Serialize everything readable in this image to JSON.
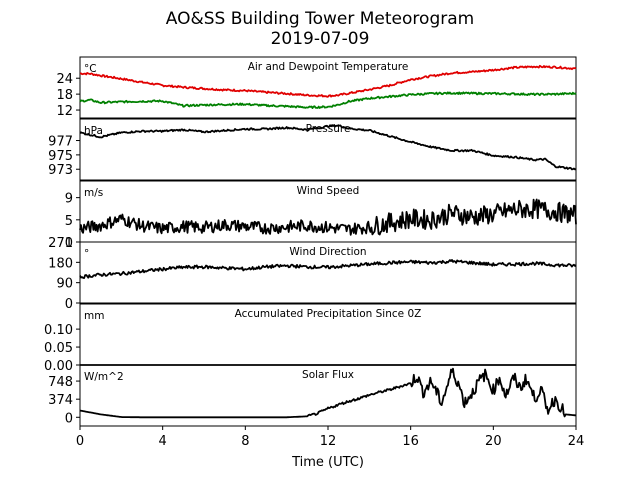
{
  "figure": {
    "title_line1": "AO&SS Building Tower Meteorogram",
    "title_line2": "2019-07-09",
    "xlabel": "Time (UTC)",
    "xticks": [
      0,
      4,
      8,
      12,
      16,
      20,
      24
    ],
    "xlim": [
      0,
      24
    ]
  },
  "chart_data": [
    {
      "type": "line",
      "title": "Air and Dewpoint Temperature",
      "unit": "°C",
      "ylim": [
        9,
        32
      ],
      "yticks": [
        12,
        18,
        24
      ],
      "x": [
        0,
        0.5,
        1,
        2,
        3,
        4,
        5,
        6,
        7,
        8,
        9,
        10,
        11,
        12,
        12.5,
        13,
        14,
        15,
        16,
        17,
        18,
        19,
        20,
        21,
        22,
        23,
        24
      ],
      "series": [
        {
          "color": "#e00000",
          "values": [
            25.8,
            25.7,
            25.0,
            23.8,
            22.5,
            21.3,
            20.6,
            20.1,
            19.6,
            19.3,
            18.7,
            18.2,
            17.6,
            17.3,
            17.6,
            18.3,
            19.7,
            21.3,
            23.5,
            24.8,
            26.0,
            26.4,
            27.1,
            28.0,
            28.4,
            28.2,
            27.6
          ]
        },
        {
          "color": "#008000",
          "values": [
            15.3,
            15.8,
            14.8,
            15.1,
            15.3,
            15.4,
            13.6,
            13.9,
            14.1,
            14.2,
            13.7,
            13.4,
            13.0,
            13.2,
            14.0,
            15.2,
            16.4,
            17.1,
            17.8,
            18.2,
            18.4,
            18.3,
            18.2,
            18.1,
            17.9,
            18.0,
            18.3
          ]
        }
      ]
    },
    {
      "type": "line",
      "title": "Pressure",
      "unit": "hPa",
      "ylim": [
        971.5,
        980
      ],
      "yticks": [
        973,
        975,
        977
      ],
      "x": [
        0,
        1,
        2,
        3,
        4,
        5,
        6,
        7,
        8,
        9,
        10,
        11,
        12,
        12.5,
        13,
        14,
        15,
        16,
        17,
        18,
        19,
        20,
        21,
        22,
        22.5,
        23,
        24
      ],
      "series": [
        {
          "color": "#000000",
          "values": [
            978.1,
            977.5,
            978.1,
            978.3,
            978.3,
            978.5,
            978.2,
            978.4,
            978.6,
            978.6,
            978.8,
            978.5,
            979.0,
            979.1,
            978.7,
            978.4,
            977.6,
            976.8,
            976.1,
            975.6,
            975.6,
            974.9,
            974.7,
            974.3,
            974.4,
            973.4,
            973.0
          ]
        }
      ]
    },
    {
      "type": "line",
      "title": "Wind Speed",
      "unit": "m/s",
      "ylim": [
        1,
        12
      ],
      "yticks": [
        1,
        5,
        9
      ],
      "x": [
        0,
        1,
        2,
        3,
        4,
        5,
        6,
        7,
        8,
        9,
        10,
        11,
        12,
        13,
        14,
        15,
        16,
        17,
        18,
        19,
        20,
        21,
        22,
        23,
        24
      ],
      "series": [
        {
          "color": "#000000",
          "values": [
            3.4,
            4.0,
            5.2,
            3.9,
            3.4,
            3.8,
            3.6,
            4.1,
            3.8,
            3.5,
            3.7,
            4.0,
            3.6,
            3.3,
            3.7,
            4.5,
            5.2,
            5.0,
            6.2,
            5.5,
            6.0,
            6.8,
            7.0,
            6.5,
            5.8
          ]
        }
      ]
    },
    {
      "type": "line",
      "title": "Wind Direction",
      "unit": "°",
      "ylim": [
        0,
        270
      ],
      "yticks": [
        0,
        90,
        180,
        270
      ],
      "x": [
        0,
        1,
        2,
        3,
        4,
        5,
        6,
        7,
        8,
        9,
        10,
        11,
        12,
        13,
        14,
        15,
        16,
        17,
        18,
        19,
        20,
        21,
        22,
        23,
        24
      ],
      "series": [
        {
          "color": "#000000",
          "values": [
            115,
            125,
            130,
            140,
            150,
            158,
            160,
            155,
            150,
            160,
            165,
            160,
            158,
            165,
            172,
            178,
            182,
            178,
            185,
            178,
            170,
            172,
            175,
            168,
            165
          ]
        }
      ]
    },
    {
      "type": "line",
      "title": "Accumulated Precipitation Since 0Z",
      "unit": "mm",
      "ylim": [
        0,
        0.17
      ],
      "yticks": [
        0.0,
        0.05,
        0.1
      ],
      "ytick_labels": [
        "0.00",
        "0.05",
        "0.10"
      ],
      "x": [
        0,
        24
      ],
      "series": [
        {
          "color": "#000000",
          "values": [
            0,
            0
          ]
        }
      ]
    },
    {
      "type": "line",
      "title": "Solar Flux",
      "unit": "W/m^2",
      "ylim": [
        -180,
        1080
      ],
      "yticks": [
        0,
        374,
        748
      ],
      "x": [
        0,
        0.5,
        1,
        2,
        3,
        4,
        5,
        6,
        7,
        8,
        9,
        10,
        11,
        11.5,
        12,
        12.5,
        13,
        13.5,
        14,
        14.5,
        15,
        15.5,
        16,
        16.3,
        16.6,
        17,
        17.5,
        18,
        18.3,
        18.6,
        19,
        19.3,
        19.6,
        20,
        20.3,
        20.6,
        21,
        21.3,
        21.6,
        22,
        22.3,
        22.6,
        23,
        23.5,
        24
      ],
      "series": [
        {
          "color": "#000000",
          "values": [
            140,
            100,
            60,
            5,
            0,
            0,
            0,
            0,
            0,
            0,
            0,
            0,
            20,
            80,
            180,
            260,
            330,
            390,
            460,
            520,
            570,
            640,
            700,
            860,
            520,
            740,
            300,
            950,
            720,
            300,
            520,
            740,
            880,
            560,
            820,
            450,
            820,
            600,
            800,
            380,
            600,
            150,
            380,
            60,
            40
          ]
        }
      ]
    }
  ]
}
